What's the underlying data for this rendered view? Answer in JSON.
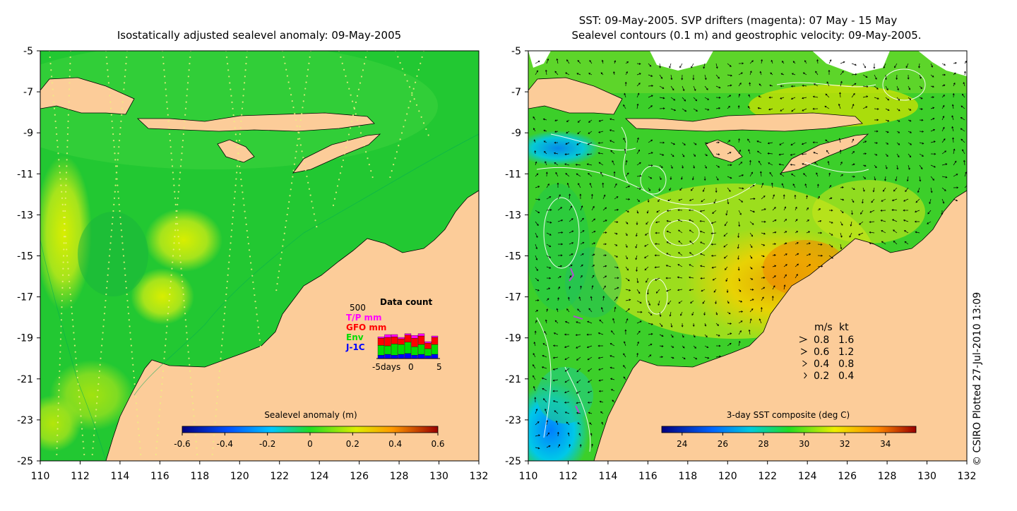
{
  "credit": "© CSIRO Plotted 27-Jul-2010 13:09",
  "axes": {
    "x_ticks": [
      110,
      112,
      114,
      116,
      118,
      120,
      122,
      124,
      126,
      128,
      130,
      132
    ],
    "y_ticks": [
      -5,
      -7,
      -9,
      -11,
      -13,
      -15,
      -17,
      -19,
      -21,
      -23,
      -25
    ],
    "xlim": [
      110,
      132
    ],
    "ylim": [
      -25,
      -5
    ]
  },
  "chart_data": [
    {
      "type": "heatmap",
      "title": "Isostatically adjusted sealevel anomaly: 09-May-2005",
      "colorbar": {
        "label": "Sealevel anomaly (m)",
        "ticks": [
          "-0.6",
          "-0.4",
          "-0.2",
          "0",
          "0.2",
          "0.4",
          "0.6"
        ],
        "range": [
          -0.6,
          0.6
        ]
      },
      "data_count": {
        "title": "Data count",
        "ymax_label": "500",
        "legend": [
          {
            "label": "T/P mm",
            "color": "#ff00ff"
          },
          {
            "label": "GFO mm",
            "color": "#ff0000"
          },
          {
            "label": "Env",
            "color": "#00dd00"
          },
          {
            "label": "J-1C",
            "color": "#0000ff"
          }
        ],
        "x_labels": [
          "-5days",
          "0",
          "5"
        ],
        "bars": [
          {
            "jc": 0.12,
            "env": 0.35,
            "gfo": 0.25,
            "tp": 0.05
          },
          {
            "jc": 0.15,
            "env": 0.3,
            "gfo": 0.3,
            "tp": 0.1
          },
          {
            "jc": 0.12,
            "env": 0.4,
            "gfo": 0.25,
            "tp": 0.08
          },
          {
            "jc": 0.15,
            "env": 0.35,
            "gfo": 0.2,
            "tp": 0.05
          },
          {
            "jc": 0.18,
            "env": 0.4,
            "gfo": 0.25,
            "tp": 0.05
          },
          {
            "jc": 0.12,
            "env": 0.3,
            "gfo": 0.3,
            "tp": 0.1
          },
          {
            "jc": 0.15,
            "env": 0.35,
            "gfo": 0.3,
            "tp": 0.08
          },
          {
            "jc": 0.1,
            "env": 0.25,
            "gfo": 0.2,
            "tp": 0.05
          },
          {
            "jc": 0.15,
            "env": 0.35,
            "gfo": 0.25,
            "tp": 0.05
          }
        ]
      }
    },
    {
      "type": "heatmap",
      "title_lines": [
        "SST: 09-May-2005. SVP drifters (magenta): 07 May - 15 May",
        "Sealevel contours (0.1 m) and geostrophic velocity: 09-May-2005."
      ],
      "colorbar": {
        "label": "3-day SST composite (deg C)",
        "ticks": [
          "24",
          "26",
          "28",
          "30",
          "32",
          "34"
        ],
        "range": [
          23,
          35.5
        ]
      },
      "velocity_legend": {
        "header": [
          "m/s",
          "kt"
        ],
        "rows": [
          {
            "ms": "0.8",
            "kt": "1.6"
          },
          {
            "ms": "0.6",
            "kt": "1.2"
          },
          {
            "ms": "0.4",
            "kt": "0.8"
          },
          {
            "ms": "0.2",
            "kt": "0.4"
          }
        ]
      }
    }
  ]
}
